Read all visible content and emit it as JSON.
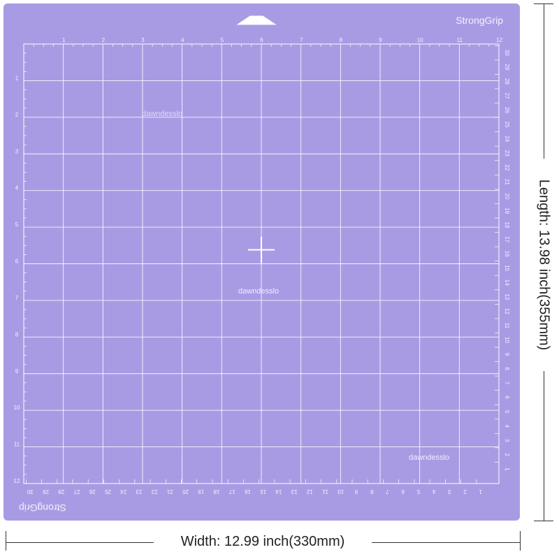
{
  "mat": {
    "brand_top": "StrongGrip",
    "brand_bottom": "StrongGrip",
    "watermarks": [
      "dawndesslo",
      "dawndesslo",
      "dawndesslo"
    ],
    "top_ruler": [
      "1",
      "2",
      "3",
      "4",
      "5",
      "6",
      "7",
      "8",
      "9",
      "10",
      "11",
      "12"
    ],
    "left_ruler": [
      "1",
      "2",
      "3",
      "4",
      "5",
      "6",
      "7",
      "8",
      "9",
      "10",
      "11",
      "12"
    ],
    "right_ruler_cm": [
      "1",
      "2",
      "3",
      "4",
      "5",
      "6",
      "7",
      "8",
      "9",
      "10",
      "11",
      "12",
      "13",
      "14",
      "15",
      "16",
      "17",
      "18",
      "19",
      "20",
      "21",
      "22",
      "23",
      "24",
      "25",
      "26",
      "27",
      "28",
      "29",
      "30"
    ],
    "bottom_ruler_cm": [
      "1",
      "2",
      "3",
      "4",
      "5",
      "6",
      "7",
      "8",
      "9",
      "10",
      "11",
      "12",
      "13",
      "14",
      "15",
      "16",
      "17",
      "18",
      "19",
      "20",
      "21",
      "22",
      "23",
      "24",
      "25",
      "26",
      "27",
      "28",
      "29",
      "30"
    ],
    "color": "#a99be3",
    "grid_color": "#ffffff"
  },
  "dimensions": {
    "width_label": "Width: 12.99 inch(330mm)",
    "length_label": "Length: 13.98 inch(355mm)"
  }
}
